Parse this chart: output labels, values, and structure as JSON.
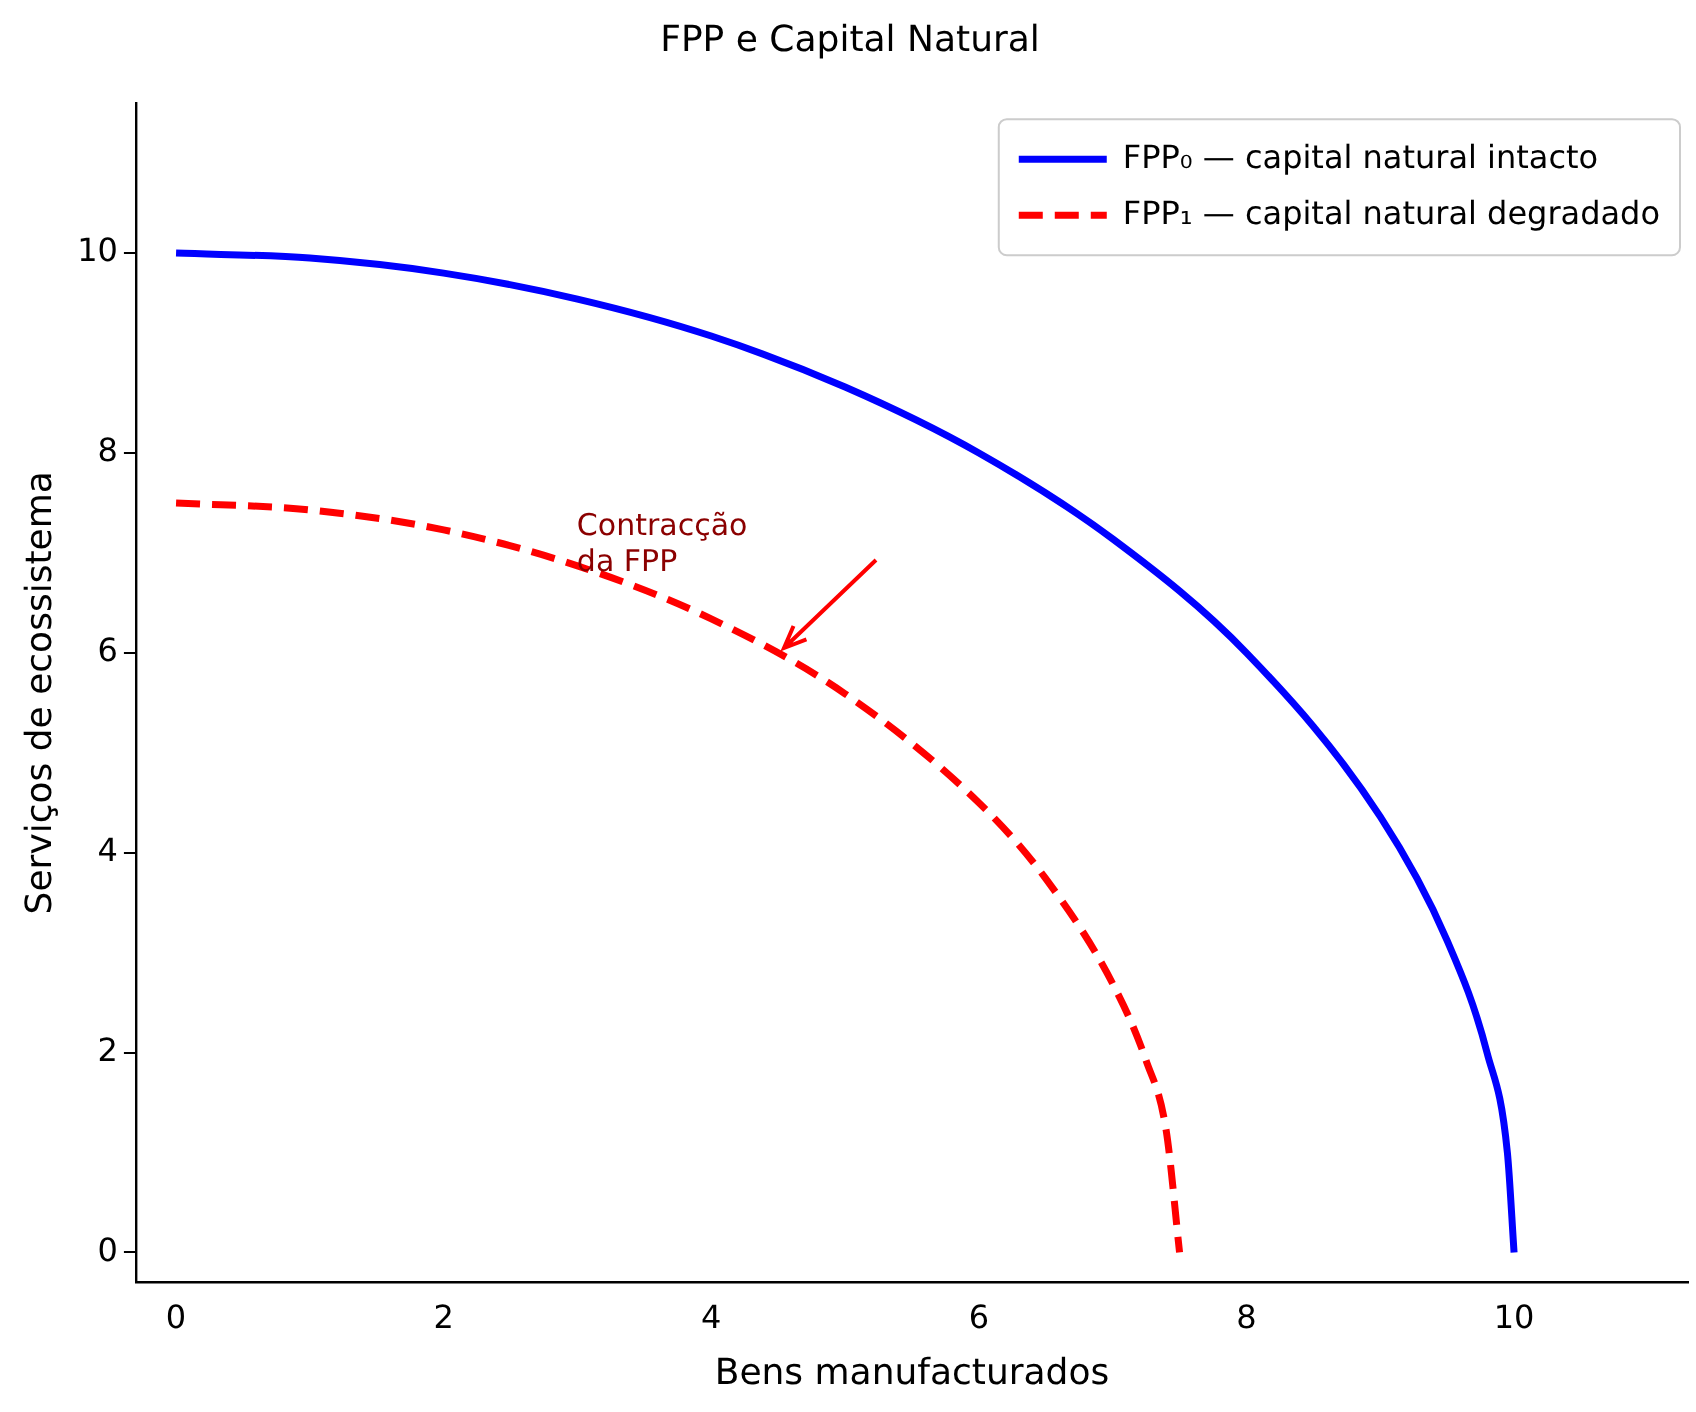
{
  "chart_data": {
    "type": "line",
    "title": "FPP e Capital Natural",
    "xlabel": "Bens manufacturados",
    "ylabel": "Serviços de ecossistema",
    "xlim": [
      -0.3,
      11.3
    ],
    "ylim": [
      -0.3,
      11.5
    ],
    "xticks": [
      0,
      2,
      4,
      6,
      8,
      10
    ],
    "yticks": [
      0,
      2,
      4,
      6,
      8,
      10
    ],
    "legend": "top right",
    "series": [
      {
        "name": "FPP₀ — capital natural intacto",
        "color": "#0000ff",
        "line_style": "solid",
        "x": [
          0,
          1,
          2,
          3,
          4,
          5,
          6,
          7,
          8,
          9,
          9.5,
          9.8,
          9.95,
          10
        ],
        "values": [
          10,
          9.95,
          9.8,
          9.54,
          9.17,
          8.66,
          8,
          7.14,
          6,
          4.36,
          3.12,
          1.99,
          1,
          0
        ]
      },
      {
        "name": "FPP₁ — capital natural degradado",
        "color": "#ff0000",
        "line_style": "dashed",
        "x": [
          0,
          1,
          2,
          3,
          4,
          5,
          6,
          6.5,
          7,
          7.25,
          7.4,
          7.5
        ],
        "values": [
          7.5,
          7.43,
          7.23,
          6.87,
          6.34,
          5.59,
          4.5,
          3.74,
          2.69,
          1.92,
          1.22,
          0
        ]
      }
    ],
    "annotations": [
      {
        "text": "Contracção\nda FPP",
        "x": 4.55,
        "y": 6.05
      }
    ]
  }
}
